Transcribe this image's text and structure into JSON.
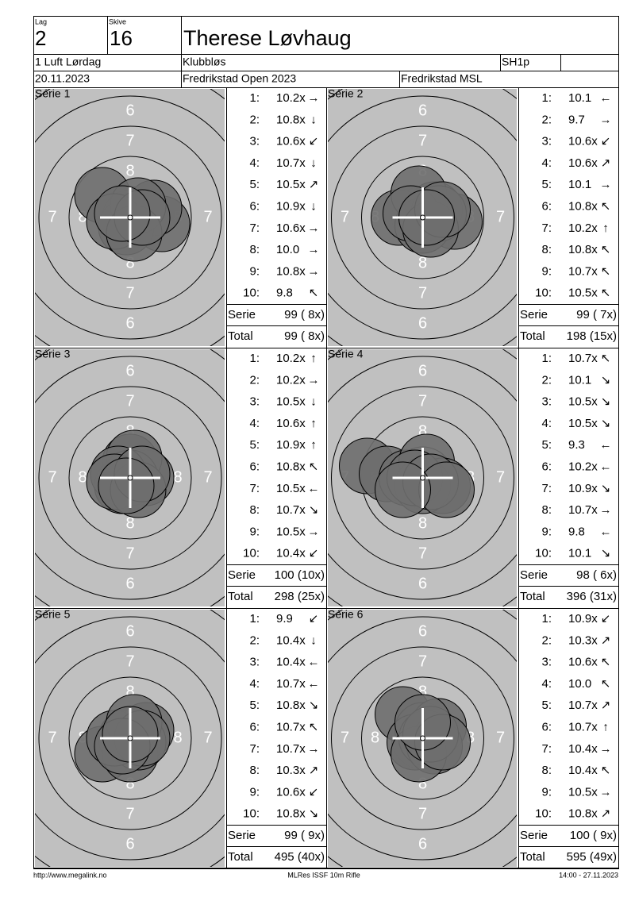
{
  "header": {
    "lag_label": "Lag",
    "lag": "2",
    "skive_label": "Skive",
    "skive": "16",
    "name": "Therese Løvhaug",
    "class": "1 Luft Lørdag",
    "club": "Klubbløs",
    "category": "SH1p",
    "date": "20.11.2023",
    "event": "Fredrikstad Open 2023",
    "venue": "Fredrikstad MSL"
  },
  "ring_labels": [
    "6",
    "7",
    "8"
  ],
  "series": [
    {
      "title": "Série 1",
      "shots": [
        {
          "no": "1:",
          "score": "10.2x",
          "arrow": "→"
        },
        {
          "no": "2:",
          "score": "10.8x",
          "arrow": "↓"
        },
        {
          "no": "3:",
          "score": "10.6x",
          "arrow": "↙"
        },
        {
          "no": "4:",
          "score": "10.7x",
          "arrow": "↓"
        },
        {
          "no": "5:",
          "score": "10.5x",
          "arrow": "↗"
        },
        {
          "no": "6:",
          "score": "10.9x",
          "arrow": "↓"
        },
        {
          "no": "7:",
          "score": "10.6x",
          "arrow": "→"
        },
        {
          "no": "8:",
          "score": "10.0",
          "arrow": "→"
        },
        {
          "no": "9:",
          "score": "10.8x",
          "arrow": "→"
        },
        {
          "no": "10:",
          "score": "9.8",
          "arrow": "↖"
        }
      ],
      "serie_label": "Serie",
      "serie": "99 ( 8x)",
      "total_label": "Total",
      "total": "99 ( 8x)"
    },
    {
      "title": "Série 2",
      "shots": [
        {
          "no": "1:",
          "score": "10.1",
          "arrow": "←"
        },
        {
          "no": "2:",
          "score": "9.7",
          "arrow": "→"
        },
        {
          "no": "3:",
          "score": "10.6x",
          "arrow": "↙"
        },
        {
          "no": "4:",
          "score": "10.6x",
          "arrow": "↗"
        },
        {
          "no": "5:",
          "score": "10.1",
          "arrow": "→"
        },
        {
          "no": "6:",
          "score": "10.8x",
          "arrow": "↖"
        },
        {
          "no": "7:",
          "score": "10.2x",
          "arrow": "↑"
        },
        {
          "no": "8:",
          "score": "10.8x",
          "arrow": "↖"
        },
        {
          "no": "9:",
          "score": "10.7x",
          "arrow": "↖"
        },
        {
          "no": "10:",
          "score": "10.5x",
          "arrow": "↖"
        }
      ],
      "serie_label": "Serie",
      "serie": "99 ( 7x)",
      "total_label": "Total",
      "total": "198 (15x)"
    },
    {
      "title": "Série 3",
      "shots": [
        {
          "no": "1:",
          "score": "10.2x",
          "arrow": "↑"
        },
        {
          "no": "2:",
          "score": "10.2x",
          "arrow": "→"
        },
        {
          "no": "3:",
          "score": "10.5x",
          "arrow": "↓"
        },
        {
          "no": "4:",
          "score": "10.6x",
          "arrow": "↑"
        },
        {
          "no": "5:",
          "score": "10.9x",
          "arrow": "↑"
        },
        {
          "no": "6:",
          "score": "10.8x",
          "arrow": "↖"
        },
        {
          "no": "7:",
          "score": "10.5x",
          "arrow": "←"
        },
        {
          "no": "8:",
          "score": "10.7x",
          "arrow": "↘"
        },
        {
          "no": "9:",
          "score": "10.5x",
          "arrow": "→"
        },
        {
          "no": "10:",
          "score": "10.4x",
          "arrow": "↙"
        }
      ],
      "serie_label": "Serie",
      "serie": "100 (10x)",
      "total_label": "Total",
      "total": "298 (25x)"
    },
    {
      "title": "Série 4",
      "shots": [
        {
          "no": "1:",
          "score": "10.7x",
          "arrow": "↖"
        },
        {
          "no": "2:",
          "score": "10.1",
          "arrow": "↘"
        },
        {
          "no": "3:",
          "score": "10.5x",
          "arrow": "↘"
        },
        {
          "no": "4:",
          "score": "10.5x",
          "arrow": "↘"
        },
        {
          "no": "5:",
          "score": "9.3",
          "arrow": "←"
        },
        {
          "no": "6:",
          "score": "10.2x",
          "arrow": "←"
        },
        {
          "no": "7:",
          "score": "10.9x",
          "arrow": "↘"
        },
        {
          "no": "8:",
          "score": "10.7x",
          "arrow": "→"
        },
        {
          "no": "9:",
          "score": "9.8",
          "arrow": "←"
        },
        {
          "no": "10:",
          "score": "10.1",
          "arrow": "↘"
        }
      ],
      "serie_label": "Serie",
      "serie": "98 ( 6x)",
      "total_label": "Total",
      "total": "396 (31x)"
    },
    {
      "title": "Série 5",
      "shots": [
        {
          "no": "1:",
          "score": "9.9",
          "arrow": "↙"
        },
        {
          "no": "2:",
          "score": "10.4x",
          "arrow": "↓"
        },
        {
          "no": "3:",
          "score": "10.4x",
          "arrow": "←"
        },
        {
          "no": "4:",
          "score": "10.7x",
          "arrow": "←"
        },
        {
          "no": "5:",
          "score": "10.8x",
          "arrow": "↘"
        },
        {
          "no": "6:",
          "score": "10.7x",
          "arrow": "↖"
        },
        {
          "no": "7:",
          "score": "10.7x",
          "arrow": "→"
        },
        {
          "no": "8:",
          "score": "10.3x",
          "arrow": "↗"
        },
        {
          "no": "9:",
          "score": "10.6x",
          "arrow": "↙"
        },
        {
          "no": "10:",
          "score": "10.8x",
          "arrow": "↘"
        }
      ],
      "serie_label": "Serie",
      "serie": "99 ( 9x)",
      "total_label": "Total",
      "total": "495 (40x)"
    },
    {
      "title": "Série 6",
      "shots": [
        {
          "no": "1:",
          "score": "10.9x",
          "arrow": "↙"
        },
        {
          "no": "2:",
          "score": "10.3x",
          "arrow": "↗"
        },
        {
          "no": "3:",
          "score": "10.6x",
          "arrow": "↖"
        },
        {
          "no": "4:",
          "score": "10.0",
          "arrow": "↖"
        },
        {
          "no": "5:",
          "score": "10.7x",
          "arrow": "↗"
        },
        {
          "no": "6:",
          "score": "10.7x",
          "arrow": "↑"
        },
        {
          "no": "7:",
          "score": "10.4x",
          "arrow": "→"
        },
        {
          "no": "8:",
          "score": "10.4x",
          "arrow": "↖"
        },
        {
          "no": "9:",
          "score": "10.5x",
          "arrow": "→"
        },
        {
          "no": "10:",
          "score": "10.8x",
          "arrow": "↗"
        }
      ],
      "serie_label": "Serie",
      "serie": "100 ( 9x)",
      "total_label": "Total",
      "total": "595 (49x)"
    }
  ],
  "footer": {
    "url": "http://www.megalink.no",
    "software": "MLRes ISSF 10m Rifle",
    "timestamp": "14:00 - 27.11.2023"
  }
}
